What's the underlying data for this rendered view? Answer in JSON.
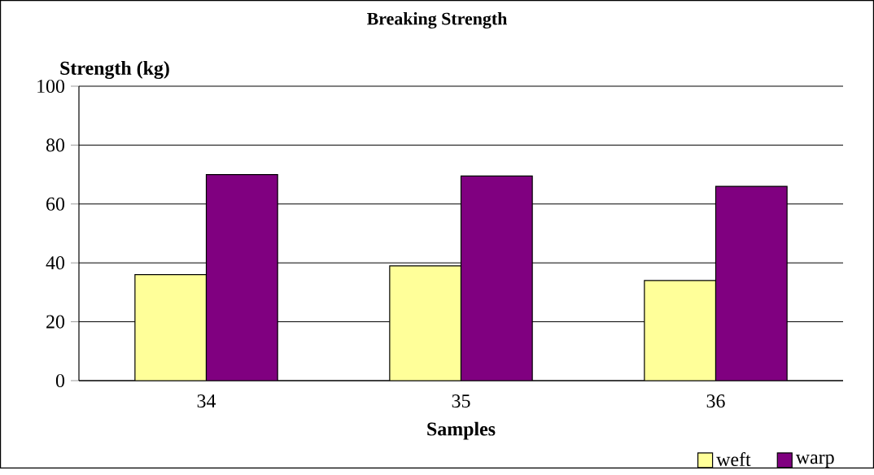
{
  "chart_data": {
    "type": "bar",
    "title": "Breaking Strength",
    "xlabel": "Samples",
    "ylabel": "Strength (kg)",
    "categories": [
      "34",
      "35",
      "36"
    ],
    "series": [
      {
        "name": "weft",
        "color": "#ffff99",
        "values": [
          36,
          39,
          34
        ]
      },
      {
        "name": "warp",
        "color": "#800080",
        "values": [
          70,
          69.5,
          66
        ]
      }
    ],
    "ylim": [
      0,
      100
    ],
    "yticks": [
      0,
      20,
      40,
      60,
      80,
      100
    ],
    "grid": "y",
    "legend": "bottom right"
  }
}
